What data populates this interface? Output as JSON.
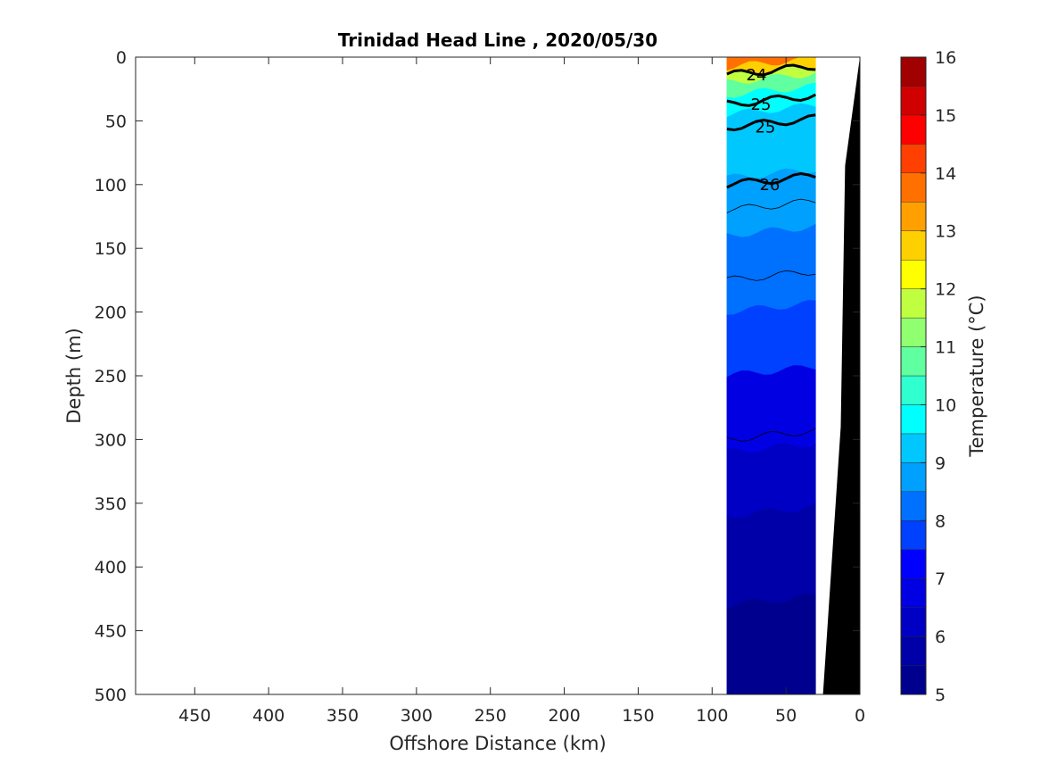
{
  "chart_data": {
    "type": "heatmap",
    "title": "Trinidad Head Line , 2020/05/30",
    "xlabel": "Offshore Distance (km)",
    "ylabel": "Depth (m)",
    "xlim": [
      490,
      0
    ],
    "ylim": [
      0,
      500
    ],
    "x_reversed": true,
    "y_reversed": true,
    "x_ticks": [
      450,
      400,
      350,
      300,
      250,
      200,
      150,
      100,
      50,
      0
    ],
    "y_ticks": [
      0,
      50,
      100,
      150,
      200,
      250,
      300,
      350,
      400,
      450,
      500
    ],
    "colorbar": {
      "label": "Temperature (°C)",
      "range": [
        5,
        16
      ],
      "ticks": [
        5,
        6,
        7,
        8,
        9,
        10,
        11,
        12,
        13,
        14,
        15,
        16
      ],
      "levels": [
        {
          "from": 5.0,
          "to": 5.5,
          "color": "#00008f"
        },
        {
          "from": 5.5,
          "to": 6.0,
          "color": "#0000a8"
        },
        {
          "from": 6.0,
          "to": 6.5,
          "color": "#0000c4"
        },
        {
          "from": 6.5,
          "to": 7.0,
          "color": "#0000e3"
        },
        {
          "from": 7.0,
          "to": 7.5,
          "color": "#0000ff"
        },
        {
          "from": 7.5,
          "to": 8.0,
          "color": "#0040ff"
        },
        {
          "from": 8.0,
          "to": 8.5,
          "color": "#0070ff"
        },
        {
          "from": 8.5,
          "to": 9.0,
          "color": "#00a0ff"
        },
        {
          "from": 9.0,
          "to": 9.5,
          "color": "#00c8ff"
        },
        {
          "from": 9.5,
          "to": 10.0,
          "color": "#00ffff"
        },
        {
          "from": 10.0,
          "to": 10.5,
          "color": "#30ffcf"
        },
        {
          "from": 10.5,
          "to": 11.0,
          "color": "#60ff9f"
        },
        {
          "from": 11.0,
          "to": 11.5,
          "color": "#90ff70"
        },
        {
          "from": 11.5,
          "to": 12.0,
          "color": "#c0ff40"
        },
        {
          "from": 12.0,
          "to": 12.5,
          "color": "#ffff00"
        },
        {
          "from": 12.5,
          "to": 13.0,
          "color": "#ffd000"
        },
        {
          "from": 13.0,
          "to": 13.5,
          "color": "#ffa000"
        },
        {
          "from": 13.5,
          "to": 14.0,
          "color": "#ff7000"
        },
        {
          "from": 14.0,
          "to": 14.5,
          "color": "#ff4000"
        },
        {
          "from": 14.5,
          "to": 15.0,
          "color": "#ff0000"
        },
        {
          "from": 15.0,
          "to": 15.5,
          "color": "#d00000"
        },
        {
          "from": 15.5,
          "to": 16.0,
          "color": "#a00000"
        }
      ]
    },
    "section_bands": [
      {
        "temp_color": "#ff7000",
        "depth_top": 0,
        "depth_bottom": 8
      },
      {
        "temp_color": "#ffd000",
        "depth_top": 8,
        "depth_bottom": 14
      },
      {
        "temp_color": "#c0ff40",
        "depth_top": 14,
        "depth_bottom": 20
      },
      {
        "temp_color": "#60ff9f",
        "depth_top": 20,
        "depth_bottom": 30
      },
      {
        "temp_color": "#00ffff",
        "depth_top": 30,
        "depth_bottom": 45
      },
      {
        "temp_color": "#00c8ff",
        "depth_top": 45,
        "depth_bottom": 95
      },
      {
        "temp_color": "#00a0ff",
        "depth_top": 95,
        "depth_bottom": 140
      },
      {
        "temp_color": "#0070ff",
        "depth_top": 140,
        "depth_bottom": 200
      },
      {
        "temp_color": "#0040ff",
        "depth_top": 200,
        "depth_bottom": 250
      },
      {
        "temp_color": "#0000e3",
        "depth_top": 250,
        "depth_bottom": 310
      },
      {
        "temp_color": "#0000c4",
        "depth_top": 310,
        "depth_bottom": 360
      },
      {
        "temp_color": "#0000a8",
        "depth_top": 360,
        "depth_bottom": 430
      },
      {
        "temp_color": "#00008f",
        "depth_top": 430,
        "depth_bottom": 500
      }
    ],
    "section_extent_km": [
      90,
      30
    ],
    "bathymetry": [
      {
        "x": 0,
        "depth": 0
      },
      {
        "x": 10,
        "depth": 85
      },
      {
        "x": 13,
        "depth": 290
      },
      {
        "x": 25,
        "depth": 500
      }
    ],
    "density_contours": [
      {
        "label": "24",
        "depth_at_label": 14
      },
      {
        "label": "25",
        "depth_at_label": 37
      },
      {
        "label": "25",
        "depth_at_label": 55
      },
      {
        "label": "26",
        "depth_at_label": 100
      }
    ]
  }
}
